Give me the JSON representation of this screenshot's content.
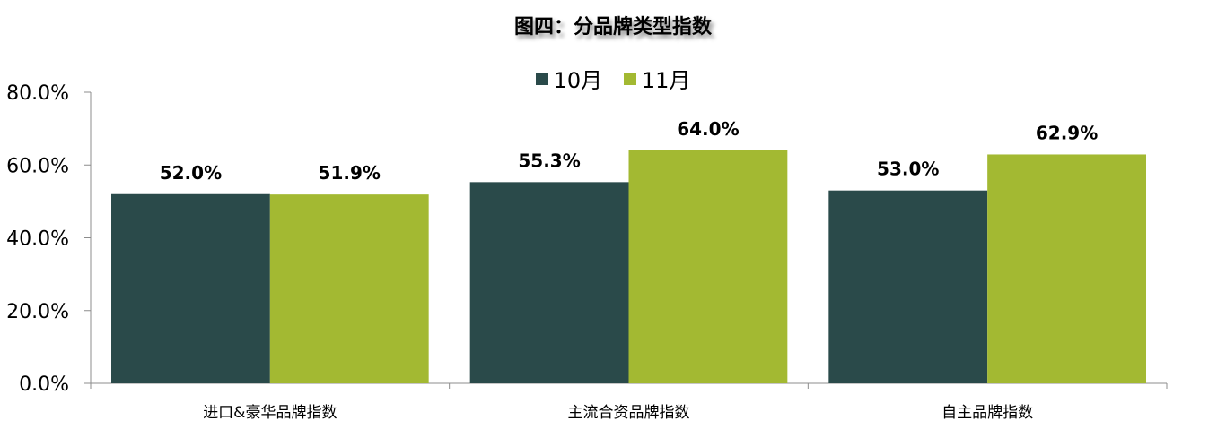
{
  "chart_data": {
    "type": "bar",
    "title": "图四：分品牌类型指数",
    "categories": [
      "进口&豪华品牌指数",
      "主流合资品牌指数",
      "自主品牌指数"
    ],
    "series": [
      {
        "name": "10月",
        "values": [
          52.0,
          55.3,
          53.0
        ],
        "color": "#2A4A4A"
      },
      {
        "name": "11月",
        "values": [
          51.9,
          64.0,
          62.9
        ],
        "color": "#A3B932"
      }
    ],
    "xlabel": "",
    "ylabel": "",
    "ylim": [
      0,
      80
    ],
    "yticks": [
      "0.0%",
      "20.0%",
      "40.0%",
      "60.0%",
      "80.0%"
    ],
    "grid": false,
    "legend": "top-center",
    "data_label_format": "percent-1-decimal"
  }
}
